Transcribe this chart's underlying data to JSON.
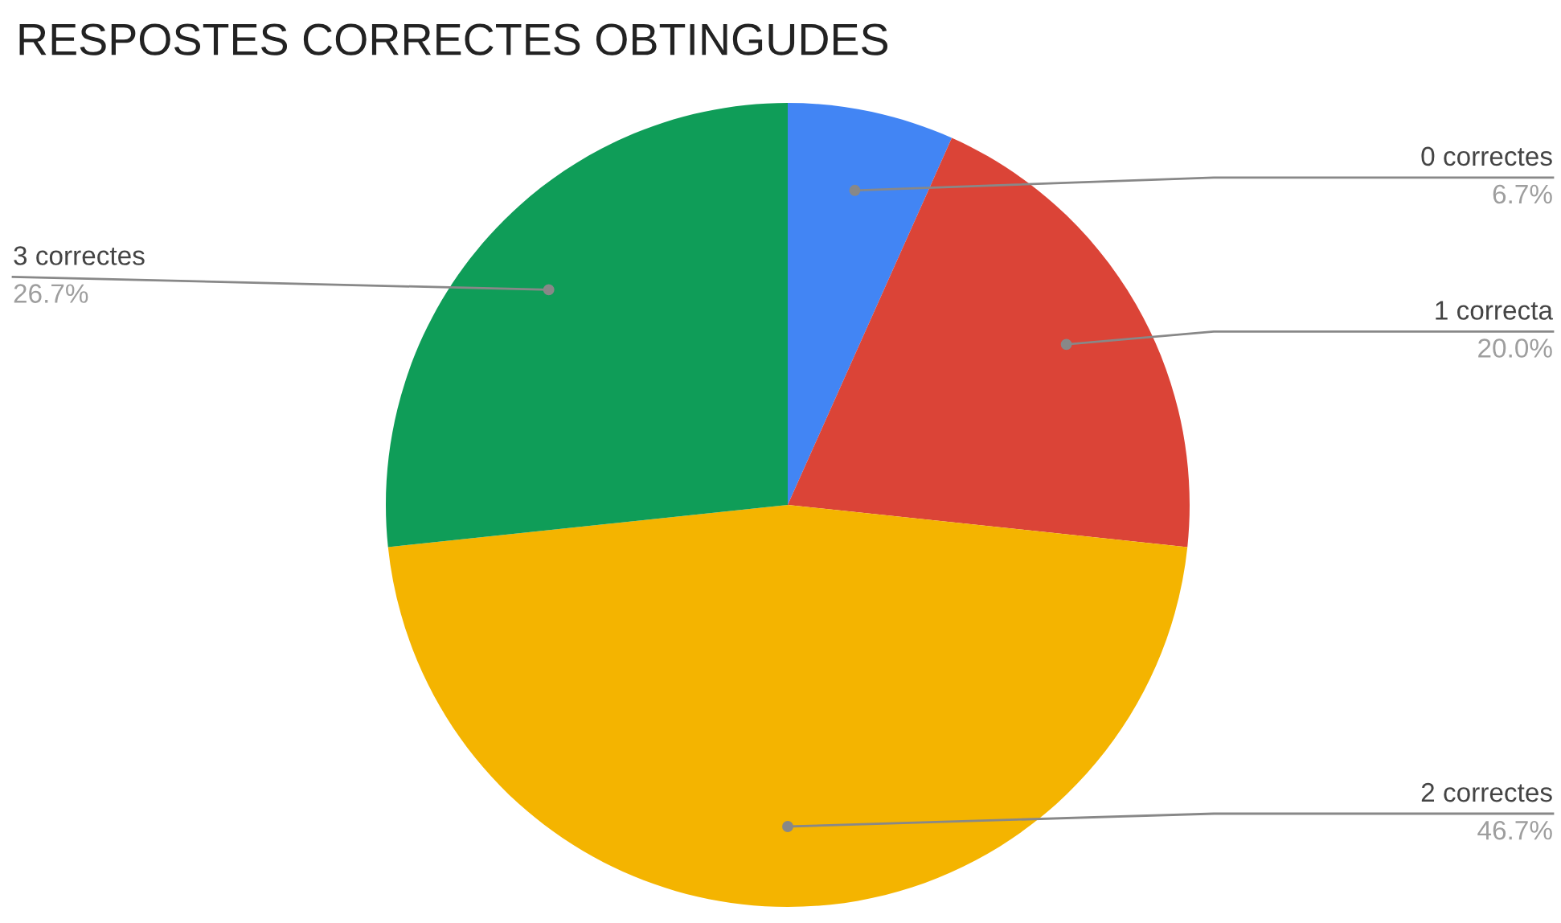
{
  "chart_data": {
    "type": "pie",
    "title": "RESPOSTES CORRECTES OBTINGUDES",
    "categories": [
      "0 correctes",
      "1 correcta",
      "2 correctes",
      "3 correctes"
    ],
    "values": [
      6.7,
      20.0,
      46.7,
      26.7
    ],
    "value_labels": [
      "6.7%",
      "20.0%",
      "46.7%",
      "26.7%"
    ],
    "colors": [
      "#4285f4",
      "#db4437",
      "#f4b400",
      "#0f9d58"
    ],
    "legend": false
  }
}
